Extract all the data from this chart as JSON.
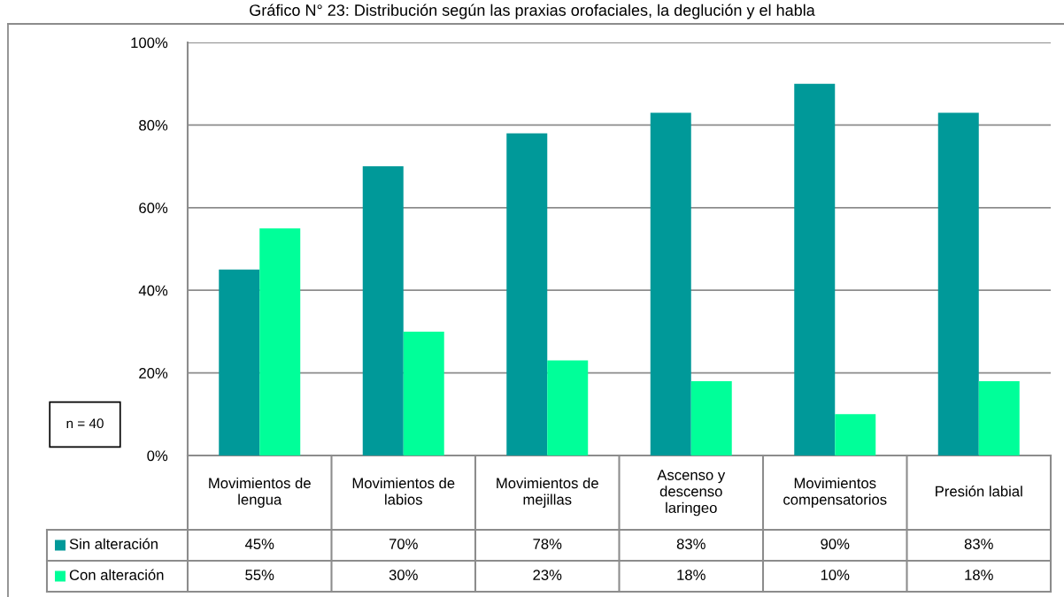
{
  "chart_data": {
    "type": "bar",
    "title": "Gráfico N° 23: Distribución según las praxias orofaciales, la deglución y el habla",
    "categories": [
      "Movimientos de lengua",
      "Movimientos de labios",
      "Movimientos de mejillas",
      "Ascenso y descenso laringeo",
      "Movimientos compensatorios",
      "Presión labial"
    ],
    "series": [
      {
        "name": "Sin alteración",
        "color": "#009999",
        "values": [
          45,
          70,
          78,
          83,
          90,
          83
        ],
        "value_labels": [
          "45%",
          "70%",
          "78%",
          "83%",
          "90%",
          "83%"
        ]
      },
      {
        "name": "Con alteración",
        "color": "#00ff99",
        "values": [
          55,
          30,
          23,
          18,
          10,
          18
        ],
        "value_labels": [
          "55%",
          "30%",
          "23%",
          "18%",
          "10%",
          "18%"
        ]
      }
    ],
    "ylim": [
      0,
      100
    ],
    "yticks": [
      {
        "value": 0,
        "label": "0%"
      },
      {
        "value": 20,
        "label": "20%"
      },
      {
        "value": 40,
        "label": "40%"
      },
      {
        "value": 60,
        "label": "60%"
      },
      {
        "value": 80,
        "label": "80%"
      },
      {
        "value": 100,
        "label": "100%"
      }
    ],
    "grid": "y",
    "legend": "bottom",
    "annotations": [
      "n = 40"
    ]
  }
}
